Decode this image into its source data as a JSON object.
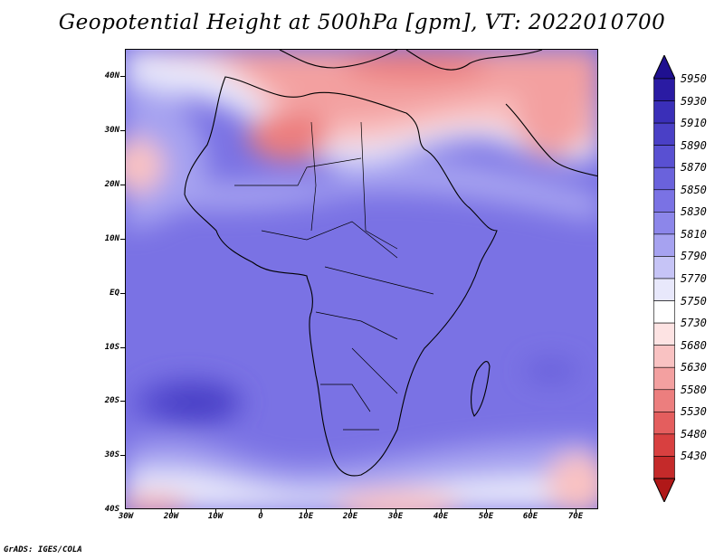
{
  "title": "Geopotential Height at 500hPa [gpm], VT: 2022010700",
  "footer": "GrADS: IGES/COLA",
  "map": {
    "region": "Africa and surrounding oceans",
    "lat_range": [
      -40,
      45
    ],
    "lon_range": [
      -30,
      75
    ],
    "lat_labels": [
      {
        "value": 40,
        "text": "40N"
      },
      {
        "value": 30,
        "text": "30N"
      },
      {
        "value": 20,
        "text": "20N"
      },
      {
        "value": 10,
        "text": "10N"
      },
      {
        "value": 0,
        "text": "EQ"
      },
      {
        "value": -10,
        "text": "10S"
      },
      {
        "value": -20,
        "text": "20S"
      },
      {
        "value": -30,
        "text": "30S"
      },
      {
        "value": -40,
        "text": "40S"
      }
    ],
    "lon_labels": [
      {
        "value": -30,
        "text": "30W"
      },
      {
        "value": -20,
        "text": "20W"
      },
      {
        "value": -10,
        "text": "10W"
      },
      {
        "value": 0,
        "text": "0"
      },
      {
        "value": 10,
        "text": "10E"
      },
      {
        "value": 20,
        "text": "20E"
      },
      {
        "value": 30,
        "text": "30E"
      },
      {
        "value": 40,
        "text": "40E"
      },
      {
        "value": 50,
        "text": "50E"
      },
      {
        "value": 60,
        "text": "60E"
      },
      {
        "value": 70,
        "text": "70E"
      }
    ]
  },
  "colorbar": {
    "levels": [
      {
        "label": "5950",
        "color": "#2a1ba3"
      },
      {
        "label": "5930",
        "color": "#3a2fb8"
      },
      {
        "label": "5910",
        "color": "#4a40c6"
      },
      {
        "label": "5890",
        "color": "#5950d2"
      },
      {
        "label": "5870",
        "color": "#6a62dc"
      },
      {
        "label": "5850",
        "color": "#7a72e4"
      },
      {
        "label": "5830",
        "color": "#8c86ea"
      },
      {
        "label": "5810",
        "color": "#a6a2f0"
      },
      {
        "label": "5790",
        "color": "#c6c4f6"
      },
      {
        "label": "5770",
        "color": "#e8e8fb"
      },
      {
        "label": "5750",
        "color": "#ffffff"
      },
      {
        "label": "5730",
        "color": "#fde3e3"
      },
      {
        "label": "5680",
        "color": "#f9c2c2"
      },
      {
        "label": "5630",
        "color": "#f3a0a0"
      },
      {
        "label": "5580",
        "color": "#ec7e7e"
      },
      {
        "label": "5530",
        "color": "#e45e5e"
      },
      {
        "label": "5480",
        "color": "#d84040"
      },
      {
        "label": "5430",
        "color": "#c42a2a"
      }
    ],
    "colors": {
      "above_max": "#1f1090",
      "below_min": "#b01818"
    }
  }
}
